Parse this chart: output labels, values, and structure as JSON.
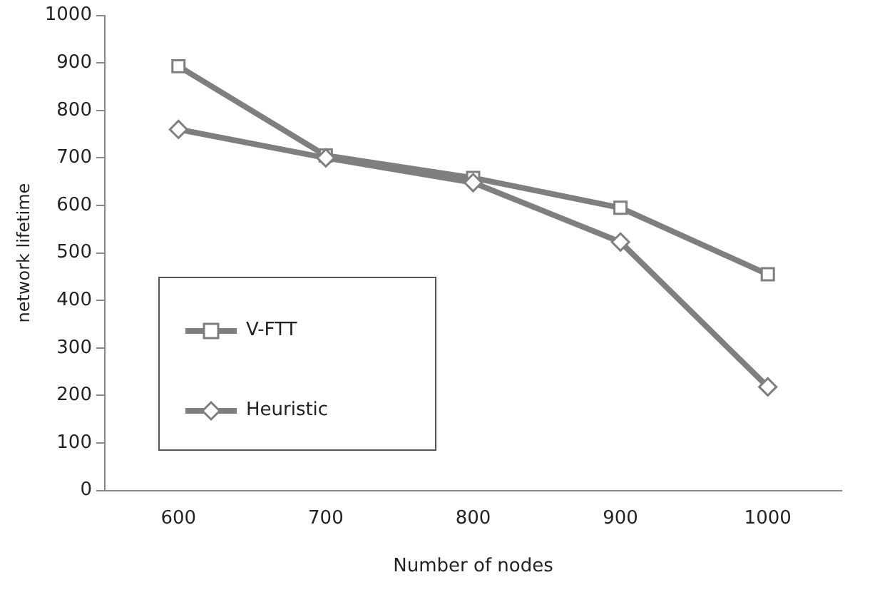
{
  "chart_data": {
    "type": "line",
    "xlabel": "Number of nodes",
    "ylabel": "network lifetime",
    "categories": [
      "600",
      "700",
      "800",
      "900",
      "1000"
    ],
    "series": [
      {
        "name": "V-FTT",
        "color": "#7f7f7f",
        "marker": "square",
        "values": [
          893,
          705,
          658,
          595,
          455
        ]
      },
      {
        "name": "Heuristic",
        "color": "#7f7f7f",
        "marker": "diamond",
        "values": [
          760,
          700,
          648,
          523,
          218
        ]
      }
    ],
    "ylim": [
      0,
      1000
    ],
    "yticks": [
      0,
      100,
      200,
      300,
      400,
      500,
      600,
      700,
      800,
      900,
      1000
    ],
    "grid": false,
    "legend": "bottom left",
    "line_style": "solid"
  }
}
